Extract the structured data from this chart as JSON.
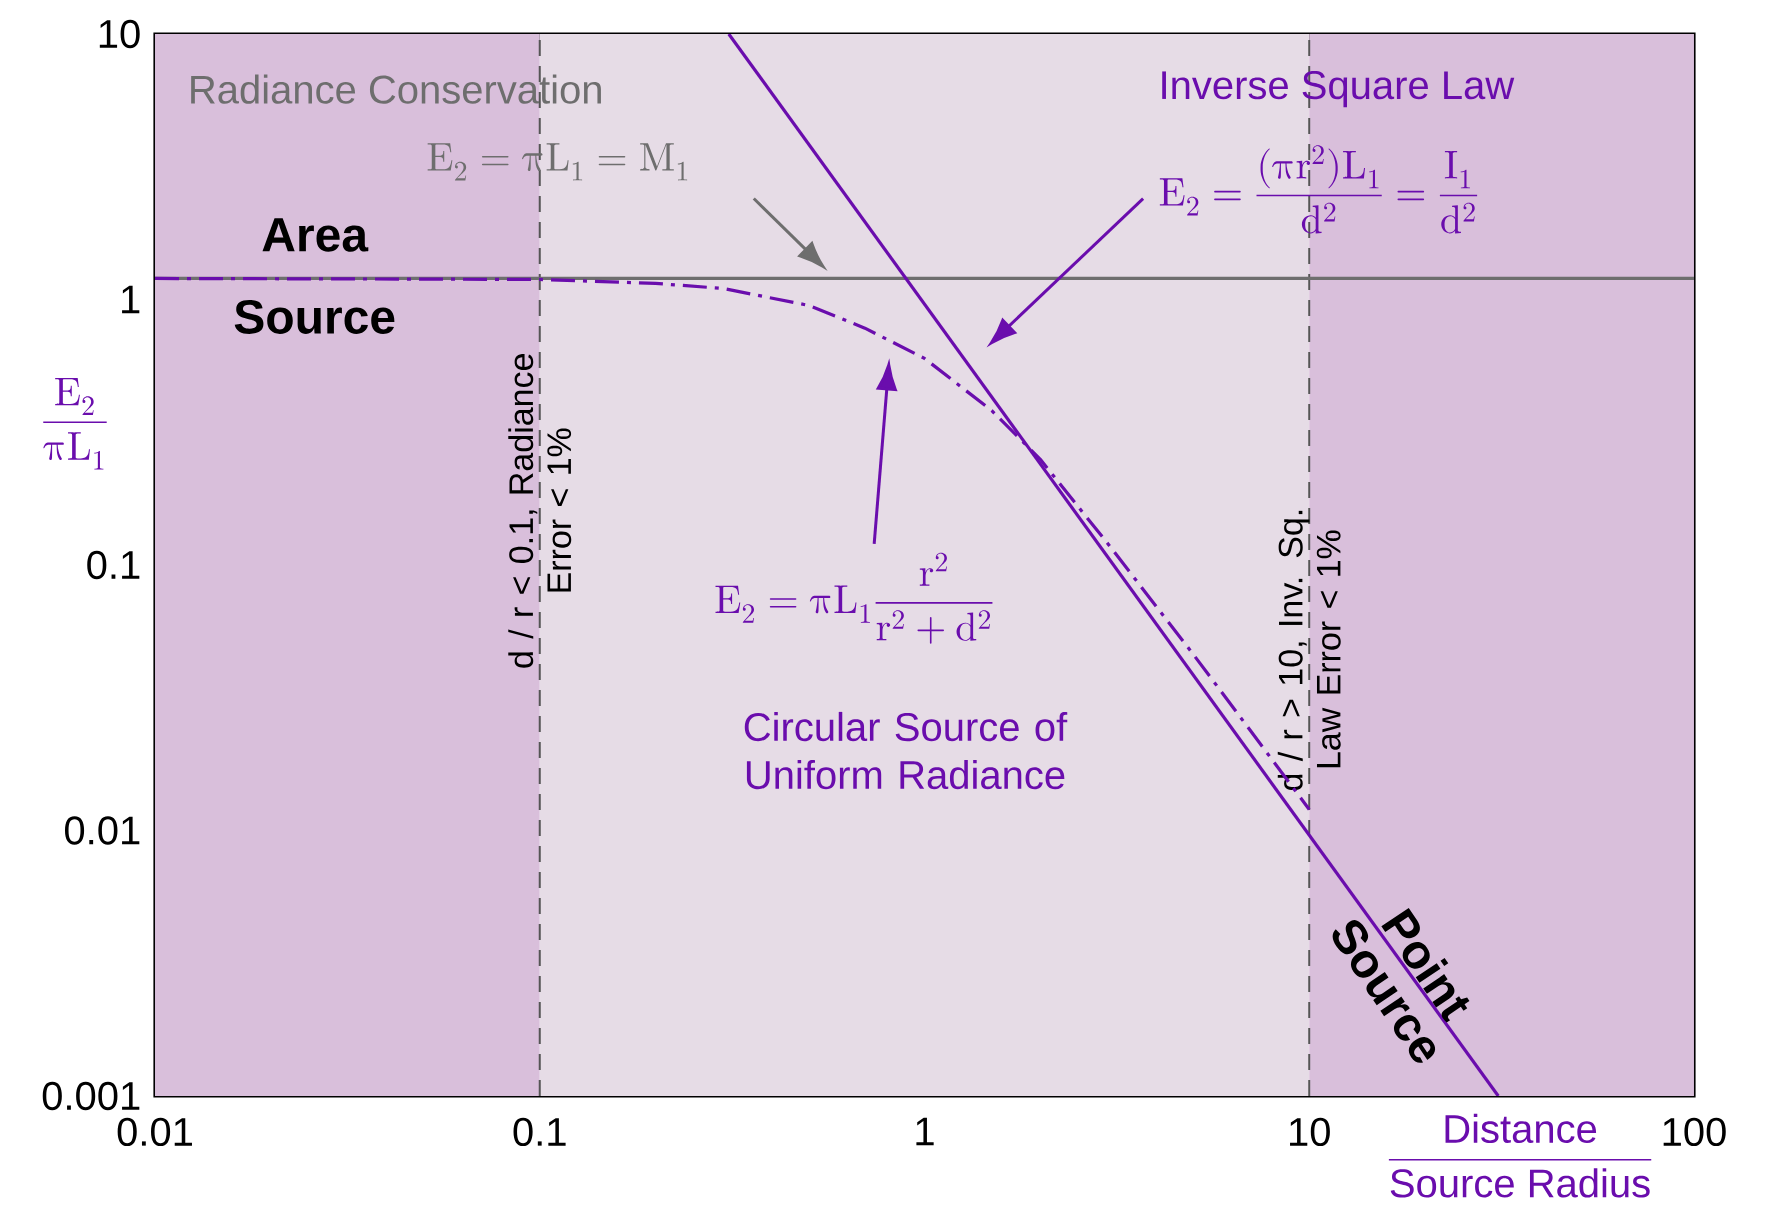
{
  "chart_data": {
    "type": "line",
    "log": "xy",
    "xlim": [
      0.01,
      100
    ],
    "ylim": [
      0.001,
      10
    ],
    "xticks": [
      0.01,
      0.1,
      1,
      10,
      100
    ],
    "yticks": [
      0.001,
      0.01,
      0.1,
      1,
      10
    ],
    "xlabel": "\\frac{\\text{Distance}}{\\text{Source Radius}}",
    "ylabel": "\\frac{E_2}{\\pi L_1}",
    "series": [
      {
        "x": [
          0.01,
          100
        ],
        "values": [
          1.2,
          1.2
        ],
        "color": "#6e6e6e",
        "line_style": "solid"
      },
      {
        "x": [
          0.31,
          31
        ],
        "values": [
          10,
          0.001
        ],
        "color": "#6a0dad",
        "line_style": "solid"
      },
      {
        "x": [
          0.01,
          0.1,
          0.2,
          0.3,
          0.5,
          0.7,
          1,
          1.5,
          2,
          3,
          5,
          7,
          10
        ],
        "values": [
          1.2,
          1.19,
          1.15,
          1.1,
          0.95,
          0.78,
          0.6,
          0.38,
          0.25,
          0.12,
          0.046,
          0.024,
          0.012
        ],
        "color": "#6a0dad",
        "line_style": "dashdot"
      }
    ],
    "bands": [
      {
        "axis": "x",
        "from": 0.01,
        "to": 0.1,
        "color": "#d9bfdb"
      },
      {
        "axis": "x",
        "from": 0.1,
        "to": 10,
        "color": "#e6dce6"
      },
      {
        "axis": "x",
        "from": 10,
        "to": 100,
        "color": "#d9bfdb"
      }
    ],
    "ref_lines": [
      {
        "axis": "x",
        "value": 0.1,
        "label": "d / r < 0.1, Radiance Error < 1%",
        "color": "#555555",
        "line_style": "dashed"
      },
      {
        "axis": "x",
        "value": 10,
        "label": "d / r > 10, Inv. Sq. Law Error < 1%",
        "color": "#555555",
        "line_style": "dashed"
      }
    ],
    "annotations": [
      "Radiance Conservation",
      "E_2 = \\pi L_1 = M_1",
      "Inverse Square Law",
      "E_2 = \\frac{(\\pi r^2) L_1}{d^2} = \\frac{I_1}{d^2}",
      "Area",
      "Source",
      "E_2 = \\pi L_1 \\frac{r^2}{r^2+d^2}",
      "Circular Source of Uniform Radiance",
      "Point Source"
    ],
    "marker": "none"
  }
}
